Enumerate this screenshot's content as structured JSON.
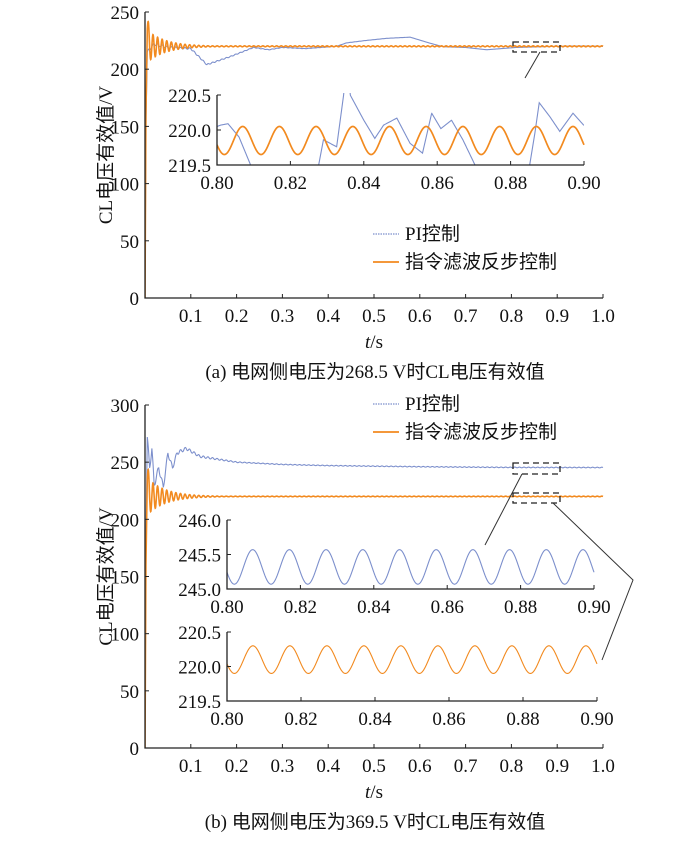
{
  "colors": {
    "pi": "#7c8fcc",
    "cfb": "#f28a1f",
    "axis": "#222222"
  },
  "chart_data": [
    {
      "type": "line",
      "caption": "(a)  电网侧电压为268.5 V时CL电压有效值",
      "ylabel": "CL电压有效值/V",
      "xlabel_italic": "t",
      "xlabel_unit": "/s",
      "xlim": [
        0,
        1.0
      ],
      "ylim": [
        0,
        250
      ],
      "xticks": [
        "0.1",
        "0.2",
        "0.3",
        "0.4",
        "0.5",
        "0.6",
        "0.7",
        "0.8",
        "0.9",
        "1.0"
      ],
      "yticks": [
        "0",
        "50",
        "100",
        "150",
        "200",
        "250"
      ],
      "legend": [
        "PI控制",
        "指令滤波反步控制"
      ],
      "legend_position": "center-right",
      "series": [
        {
          "name": "PI控制",
          "color_key": "pi",
          "points": [
            [
              0,
              0
            ],
            [
              0.002,
              150
            ],
            [
              0.005,
              215
            ],
            [
              0.02,
              222
            ],
            [
              0.05,
              219
            ],
            [
              0.1,
              218
            ],
            [
              0.135,
              204
            ],
            [
              0.186,
              211
            ],
            [
              0.237,
              219
            ],
            [
              0.27,
              217
            ],
            [
              0.3,
              219
            ],
            [
              0.35,
              218
            ],
            [
              0.418,
              220
            ],
            [
              0.44,
              223
            ],
            [
              0.48,
              225
            ],
            [
              0.528,
              227
            ],
            [
              0.579,
              228
            ],
            [
              0.62,
              223
            ],
            [
              0.651,
              219.6
            ],
            [
              0.7,
              219
            ],
            [
              0.746,
              217
            ],
            [
              0.81,
              219
            ],
            [
              0.9,
              220
            ],
            [
              0.95,
              220.3
            ],
            [
              1.0,
              220
            ]
          ],
          "ripple": {
            "amplitude": 1.2,
            "decay": 0.15,
            "period": 0.01
          }
        },
        {
          "name": "指令滤波反步控制",
          "color_key": "cfb",
          "points": [
            [
              0,
              0
            ],
            [
              0.002,
              160
            ],
            [
              0.005,
              235
            ],
            [
              0.01,
              220
            ],
            [
              1.0,
              220
            ]
          ],
          "ripple": {
            "amplitude": 14,
            "decay": 0.04,
            "period": 0.01,
            "floor": 0.4
          }
        }
      ],
      "insets": [
        {
          "xlim": [
            0.8,
            0.9
          ],
          "ylim": [
            219.5,
            220.5
          ],
          "xticks": [
            "0.80",
            "0.82",
            "0.84",
            "0.86",
            "0.88",
            "0.90"
          ],
          "yticks": [
            "219.5",
            "220.0",
            "220.5"
          ],
          "series": [
            {
              "name": "PI控制",
              "color_key": "pi",
              "points": [
                [
                  0.8,
                  220.05
                ],
                [
                  0.801,
                  220.07
                ],
                [
                  0.803,
                  220.09
                ],
                [
                  0.806,
                  219.9
                ],
                [
                  0.809,
                  219.52
                ],
                [
                  0.811,
                  219.2
                ],
                [
                  0.826,
                  219.2
                ],
                [
                  0.8277,
                  219.5
                ],
                [
                  0.829,
                  219.86
                ],
                [
                  0.8326,
                  219.76
                ],
                [
                  0.8345,
                  220.5
                ],
                [
                  0.835,
                  220.8
                ],
                [
                  0.836,
                  220.8
                ],
                [
                  0.8363,
                  220.5
                ],
                [
                  0.84,
                  220.14
                ],
                [
                  0.843,
                  219.88
                ],
                [
                  0.8454,
                  220.07
                ],
                [
                  0.849,
                  220.17
                ],
                [
                  0.8526,
                  219.81
                ],
                [
                  0.856,
                  219.67
                ],
                [
                  0.8585,
                  220.24
                ],
                [
                  0.861,
                  220.02
                ],
                [
                  0.8639,
                  220.14
                ],
                [
                  0.867,
                  219.86
                ],
                [
                  0.8703,
                  219.5
                ],
                [
                  0.872,
                  219.2
                ],
                [
                  0.884,
                  219.2
                ],
                [
                  0.8852,
                  219.5
                ],
                [
                  0.8866,
                  219.95
                ],
                [
                  0.8878,
                  220.39
                ],
                [
                  0.8907,
                  220.19
                ],
                [
                  0.8934,
                  219.98
                ],
                [
                  0.897,
                  220.24
                ],
                [
                  0.8999,
                  220.07
                ]
              ]
            },
            {
              "name": "指令滤波反步控制",
              "color_key": "cfb",
              "sine": {
                "mean": 219.85,
                "amplitude": 0.2,
                "period": 0.01,
                "peak_at": 0.807
              }
            }
          ]
        }
      ]
    },
    {
      "type": "line",
      "caption": "(b)  电网侧电压为369.5 V时CL电压有效值",
      "ylabel": "CL电压有效值/V",
      "xlabel_italic": "t",
      "xlabel_unit": "/s",
      "xlim": [
        0,
        1.0
      ],
      "ylim": [
        0,
        300
      ],
      "xticks": [
        "0.1",
        "0.2",
        "0.3",
        "0.4",
        "0.5",
        "0.6",
        "0.7",
        "0.8",
        "0.9",
        "1.0"
      ],
      "yticks": [
        "0",
        "50",
        "100",
        "150",
        "200",
        "250",
        "300"
      ],
      "legend": [
        "PI控制",
        "指令滤波反步控制"
      ],
      "legend_position": "top-right",
      "series": [
        {
          "name": "PI控制",
          "color_key": "pi",
          "points": [
            [
              0,
              0
            ],
            [
              0.002,
              180
            ],
            [
              0.005,
              272
            ],
            [
              0.01,
              245
            ],
            [
              0.015,
              262
            ],
            [
              0.02,
              230
            ],
            [
              0.03,
              245
            ],
            [
              0.04,
              228
            ],
            [
              0.05,
              258
            ],
            [
              0.06,
              245
            ],
            [
              0.07,
              258
            ],
            [
              0.09,
              262
            ],
            [
              0.12,
              255
            ],
            [
              0.2,
              250
            ],
            [
              0.3,
              248
            ],
            [
              0.4,
              247
            ],
            [
              0.6,
              246
            ],
            [
              0.8,
              245.4
            ],
            [
              1.0,
              245.3
            ]
          ],
          "ripple": {
            "amplitude": 3,
            "decay": 0.1,
            "period": 0.01,
            "floor": 0.3
          }
        },
        {
          "name": "指令滤波反步控制",
          "color_key": "cfb",
          "points": [
            [
              0,
              0
            ],
            [
              0.002,
              160
            ],
            [
              0.005,
              235
            ],
            [
              0.01,
              220
            ],
            [
              1.0,
              220
            ]
          ],
          "ripple": {
            "amplitude": 16,
            "decay": 0.04,
            "period": 0.01,
            "floor": 0.25
          }
        }
      ],
      "insets": [
        {
          "xlim": [
            0.8,
            0.9
          ],
          "ylim": [
            245.0,
            246.0
          ],
          "xticks": [
            "0.80",
            "0.82",
            "0.84",
            "0.86",
            "0.88",
            "0.90"
          ],
          "yticks": [
            "245.0",
            "245.5",
            "246.0"
          ],
          "series": [
            {
              "name": "PI控制",
              "color_key": "pi",
              "sine": {
                "mean": 245.32,
                "amplitude": 0.25,
                "period": 0.01,
                "peak_at": 0.807
              }
            }
          ]
        },
        {
          "xlim": [
            0.8,
            0.9
          ],
          "ylim": [
            219.5,
            220.5
          ],
          "xticks": [
            "0.80",
            "0.82",
            "0.84",
            "0.86",
            "0.88",
            "0.90"
          ],
          "yticks": [
            "219.5",
            "220.0",
            "220.5"
          ],
          "series": [
            {
              "name": "指令滤波反步控制",
              "color_key": "cfb",
              "sine": {
                "mean": 220.1,
                "amplitude": 0.2,
                "period": 0.01,
                "peak_at": 0.807
              }
            }
          ]
        }
      ]
    }
  ]
}
